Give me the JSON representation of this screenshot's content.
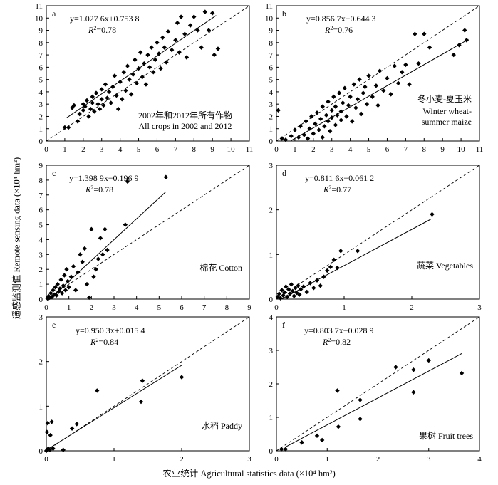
{
  "figure": {
    "xlabel": "农业统计 Agricultural statistics data (×10⁴ hm²)",
    "ylabel": "遥感监测值 Remote sensing data (×10⁴ hm²)"
  },
  "chart_data": [
    {
      "type": "scatter",
      "letter": "a",
      "label_lines": [
        "2002年和2012年所有作物",
        "All crops in 2002 and 2012"
      ],
      "equation": "y=1.027 6x+0.753 8",
      "r2": "0.78",
      "fit": {
        "slope": 1.0276,
        "intercept": 0.7538,
        "x_range": [
          1.1,
          9.2
        ]
      },
      "xlim": [
        0,
        11
      ],
      "ylim": [
        0,
        11
      ],
      "xticks": [
        0,
        1,
        2,
        3,
        4,
        5,
        6,
        7,
        8,
        9,
        10,
        11
      ],
      "yticks": [
        0,
        1,
        2,
        3,
        4,
        5,
        6,
        7,
        8,
        9,
        10,
        11
      ],
      "points": [
        [
          1.0,
          1.1
        ],
        [
          1.2,
          1.1
        ],
        [
          1.4,
          2.7
        ],
        [
          1.5,
          2.9
        ],
        [
          1.7,
          1.6
        ],
        [
          1.8,
          2.2
        ],
        [
          2.0,
          2.5
        ],
        [
          2.0,
          3.0
        ],
        [
          2.1,
          2.8
        ],
        [
          2.2,
          3.3
        ],
        [
          2.3,
          2.0
        ],
        [
          2.4,
          2.6
        ],
        [
          2.5,
          3.1
        ],
        [
          2.5,
          3.6
        ],
        [
          2.6,
          2.4
        ],
        [
          2.7,
          3.9
        ],
        [
          2.8,
          3.0
        ],
        [
          2.9,
          2.6
        ],
        [
          3.0,
          3.4
        ],
        [
          3.0,
          4.2
        ],
        [
          3.1,
          2.9
        ],
        [
          3.2,
          4.6
        ],
        [
          3.3,
          3.5
        ],
        [
          3.4,
          4.0
        ],
        [
          3.5,
          3.1
        ],
        [
          3.6,
          4.4
        ],
        [
          3.7,
          5.3
        ],
        [
          3.8,
          3.7
        ],
        [
          3.9,
          2.6
        ],
        [
          4.0,
          4.8
        ],
        [
          4.1,
          3.4
        ],
        [
          4.2,
          5.6
        ],
        [
          4.3,
          4.1
        ],
        [
          4.4,
          6.1
        ],
        [
          4.5,
          5.0
        ],
        [
          4.6,
          3.8
        ],
        [
          4.7,
          5.4
        ],
        [
          4.8,
          6.6
        ],
        [
          4.9,
          4.7
        ],
        [
          5.0,
          5.9
        ],
        [
          5.1,
          7.2
        ],
        [
          5.2,
          5.2
        ],
        [
          5.3,
          6.3
        ],
        [
          5.4,
          4.6
        ],
        [
          5.5,
          7.0
        ],
        [
          5.6,
          6.0
        ],
        [
          5.7,
          7.6
        ],
        [
          5.8,
          5.6
        ],
        [
          5.9,
          6.6
        ],
        [
          6.0,
          8.0
        ],
        [
          6.1,
          7.1
        ],
        [
          6.2,
          5.9
        ],
        [
          6.3,
          8.4
        ],
        [
          6.4,
          7.6
        ],
        [
          6.5,
          6.4
        ],
        [
          6.6,
          8.9
        ],
        [
          6.8,
          7.4
        ],
        [
          7.0,
          8.2
        ],
        [
          7.1,
          9.6
        ],
        [
          7.2,
          7.2
        ],
        [
          7.3,
          10.1
        ],
        [
          7.5,
          8.7
        ],
        [
          7.6,
          6.8
        ],
        [
          7.8,
          9.4
        ],
        [
          8.0,
          10.1
        ],
        [
          8.2,
          9.0
        ],
        [
          8.4,
          7.6
        ],
        [
          8.6,
          10.5
        ],
        [
          8.8,
          9.0
        ],
        [
          9.0,
          10.4
        ],
        [
          9.1,
          7.0
        ],
        [
          9.3,
          7.5
        ]
      ]
    },
    {
      "type": "scatter",
      "letter": "b",
      "label_lines": [
        "冬小麦-夏玉米",
        "Winter wheat-",
        "summer maize"
      ],
      "equation": "y=0.856 7x−0.644 3",
      "r2": "0.76",
      "fit": {
        "slope": 0.8567,
        "intercept": -0.6443,
        "x_range": [
          0.8,
          10.4
        ]
      },
      "xlim": [
        0,
        11
      ],
      "ylim": [
        0,
        11
      ],
      "xticks": [
        0,
        1,
        2,
        3,
        4,
        5,
        6,
        7,
        8,
        9,
        10,
        11
      ],
      "yticks": [
        0,
        1,
        2,
        3,
        4,
        5,
        6,
        7,
        8,
        9,
        10,
        11
      ],
      "points": [
        [
          0.1,
          2.5
        ],
        [
          0.3,
          0.2
        ],
        [
          0.5,
          0.1
        ],
        [
          0.8,
          0.4
        ],
        [
          1.0,
          0.9
        ],
        [
          1.2,
          0.3
        ],
        [
          1.3,
          1.2
        ],
        [
          1.5,
          0.5
        ],
        [
          1.6,
          1.6
        ],
        [
          1.7,
          0.2
        ],
        [
          1.8,
          1.0
        ],
        [
          1.9,
          2.0
        ],
        [
          2.0,
          0.6
        ],
        [
          2.1,
          1.4
        ],
        [
          2.2,
          2.3
        ],
        [
          2.3,
          0.9
        ],
        [
          2.4,
          1.8
        ],
        [
          2.5,
          2.8
        ],
        [
          2.5,
          0.3
        ],
        [
          2.6,
          1.2
        ],
        [
          2.7,
          2.1
        ],
        [
          2.8,
          1.6
        ],
        [
          2.8,
          3.2
        ],
        [
          2.9,
          0.8
        ],
        [
          3.0,
          2.5
        ],
        [
          3.0,
          1.9
        ],
        [
          3.1,
          3.6
        ],
        [
          3.2,
          1.3
        ],
        [
          3.2,
          2.8
        ],
        [
          3.3,
          2.1
        ],
        [
          3.4,
          3.9
        ],
        [
          3.5,
          1.7
        ],
        [
          3.5,
          2.4
        ],
        [
          3.6,
          3.1
        ],
        [
          3.7,
          4.3
        ],
        [
          3.8,
          2.0
        ],
        [
          3.9,
          2.9
        ],
        [
          4.0,
          3.6
        ],
        [
          4.1,
          1.6
        ],
        [
          4.2,
          4.6
        ],
        [
          4.3,
          2.7
        ],
        [
          4.4,
          3.4
        ],
        [
          4.5,
          5.0
        ],
        [
          4.6,
          2.2
        ],
        [
          4.7,
          3.9
        ],
        [
          4.8,
          4.4
        ],
        [
          4.9,
          3.0
        ],
        [
          5.0,
          5.3
        ],
        [
          5.2,
          3.6
        ],
        [
          5.4,
          4.5
        ],
        [
          5.5,
          2.9
        ],
        [
          5.6,
          5.7
        ],
        [
          5.8,
          4.1
        ],
        [
          6.0,
          5.1
        ],
        [
          6.2,
          3.8
        ],
        [
          6.4,
          6.1
        ],
        [
          6.6,
          4.7
        ],
        [
          6.8,
          5.6
        ],
        [
          7.0,
          6.2
        ],
        [
          7.2,
          4.6
        ],
        [
          7.5,
          8.7
        ],
        [
          7.7,
          6.3
        ],
        [
          8.0,
          8.7
        ],
        [
          8.3,
          7.6
        ],
        [
          9.6,
          7.0
        ],
        [
          9.9,
          7.8
        ],
        [
          10.2,
          9.0
        ],
        [
          10.3,
          8.2
        ]
      ]
    },
    {
      "type": "scatter",
      "letter": "c",
      "label_lines": [
        "棉花 Cotton"
      ],
      "equation": "y=1.398 9x−0.196 9",
      "r2": "0.78",
      "fit": {
        "slope": 1.3989,
        "intercept": -0.1969,
        "x_range": [
          0.05,
          5.3
        ]
      },
      "xlim": [
        0,
        9
      ],
      "ylim": [
        0,
        9
      ],
      "xticks": [
        0,
        1,
        2,
        3,
        4,
        5,
        6,
        7,
        8,
        9
      ],
      "yticks": [
        0,
        1,
        2,
        3,
        4,
        5,
        6,
        7,
        8,
        9
      ],
      "points": [
        [
          0.05,
          0.05
        ],
        [
          0.1,
          0.2
        ],
        [
          0.15,
          0.1
        ],
        [
          0.2,
          0.4
        ],
        [
          0.25,
          0.15
        ],
        [
          0.3,
          0.6
        ],
        [
          0.35,
          0.3
        ],
        [
          0.4,
          0.8
        ],
        [
          0.45,
          0.25
        ],
        [
          0.5,
          1.0
        ],
        [
          0.55,
          0.5
        ],
        [
          0.6,
          0.7
        ],
        [
          0.65,
          1.3
        ],
        [
          0.7,
          0.4
        ],
        [
          0.75,
          0.9
        ],
        [
          0.8,
          1.6
        ],
        [
          0.85,
          0.6
        ],
        [
          0.9,
          2.0
        ],
        [
          0.95,
          1.2
        ],
        [
          1.0,
          0.8
        ],
        [
          1.1,
          1.5
        ],
        [
          1.2,
          2.2
        ],
        [
          1.3,
          0.6
        ],
        [
          1.4,
          1.8
        ],
        [
          1.5,
          3.0
        ],
        [
          1.6,
          2.5
        ],
        [
          1.7,
          3.4
        ],
        [
          1.8,
          1.0
        ],
        [
          1.9,
          0.1
        ],
        [
          2.0,
          4.7
        ],
        [
          2.1,
          1.5
        ],
        [
          2.2,
          2.0
        ],
        [
          2.3,
          2.7
        ],
        [
          2.4,
          4.1
        ],
        [
          2.5,
          3.0
        ],
        [
          2.6,
          4.7
        ],
        [
          2.7,
          3.3
        ],
        [
          3.5,
          5.0
        ],
        [
          3.6,
          7.9
        ],
        [
          5.3,
          8.2
        ]
      ]
    },
    {
      "type": "scatter",
      "letter": "d",
      "label_lines": [
        "蔬菜 Vegetables"
      ],
      "equation": "y=0.811 6x−0.061 2",
      "r2": "0.77",
      "fit": {
        "slope": 0.8116,
        "intercept": -0.0612,
        "x_range": [
          0.08,
          2.28
        ]
      },
      "xlim": [
        0,
        3
      ],
      "ylim": [
        0,
        3
      ],
      "xticks": [
        0,
        1,
        2,
        3
      ],
      "yticks": [
        0,
        1,
        2,
        3
      ],
      "points": [
        [
          0.02,
          0.05
        ],
        [
          0.04,
          0.12
        ],
        [
          0.06,
          0.02
        ],
        [
          0.08,
          0.2
        ],
        [
          0.1,
          0.08
        ],
        [
          0.12,
          0.15
        ],
        [
          0.14,
          0.28
        ],
        [
          0.16,
          0.05
        ],
        [
          0.18,
          0.22
        ],
        [
          0.2,
          0.12
        ],
        [
          0.22,
          0.33
        ],
        [
          0.24,
          0.18
        ],
        [
          0.26,
          0.07
        ],
        [
          0.28,
          0.25
        ],
        [
          0.3,
          0.14
        ],
        [
          0.32,
          0.3
        ],
        [
          0.34,
          0.1
        ],
        [
          0.36,
          0.22
        ],
        [
          0.4,
          0.28
        ],
        [
          0.45,
          0.16
        ],
        [
          0.5,
          0.36
        ],
        [
          0.55,
          0.25
        ],
        [
          0.6,
          0.42
        ],
        [
          0.65,
          0.3
        ],
        [
          0.7,
          0.5
        ],
        [
          0.75,
          0.64
        ],
        [
          0.8,
          0.72
        ],
        [
          0.85,
          0.88
        ],
        [
          0.9,
          0.7
        ],
        [
          0.95,
          1.08
        ],
        [
          1.2,
          1.08
        ],
        [
          2.3,
          1.9
        ]
      ]
    },
    {
      "type": "scatter",
      "letter": "e",
      "label_lines": [
        "水稻 Paddy"
      ],
      "equation": "y=0.950 3x+0.015 4",
      "r2": "0.84",
      "fit": {
        "slope": 0.9503,
        "intercept": 0.0154,
        "x_range": [
          0.0,
          2.0
        ]
      },
      "xlim": [
        0,
        3
      ],
      "ylim": [
        0,
        3
      ],
      "xticks": [
        0,
        1,
        2,
        3
      ],
      "yticks": [
        0,
        1,
        2,
        3
      ],
      "points": [
        [
          0.0,
          0.0
        ],
        [
          0.01,
          0.42
        ],
        [
          0.02,
          0.62
        ],
        [
          0.03,
          0.05
        ],
        [
          0.05,
          0.02
        ],
        [
          0.06,
          0.35
        ],
        [
          0.08,
          0.65
        ],
        [
          0.1,
          0.05
        ],
        [
          0.25,
          0.02
        ],
        [
          0.38,
          0.5
        ],
        [
          0.45,
          0.6
        ],
        [
          0.75,
          1.35
        ],
        [
          1.4,
          1.1
        ],
        [
          1.42,
          1.57
        ],
        [
          2.0,
          1.65
        ]
      ]
    },
    {
      "type": "scatter",
      "letter": "f",
      "label_lines": [
        "果树 Fruit trees"
      ],
      "equation": "y=0.803 7x−0.028 9",
      "r2": "0.82",
      "fit": {
        "slope": 0.8037,
        "intercept": -0.0289,
        "x_range": [
          0.18,
          3.65
        ]
      },
      "xlim": [
        0,
        4
      ],
      "ylim": [
        0,
        4
      ],
      "xticks": [
        0,
        1,
        2,
        3,
        4
      ],
      "yticks": [
        0,
        1,
        2,
        3,
        4
      ],
      "points": [
        [
          0.1,
          0.05
        ],
        [
          0.18,
          0.05
        ],
        [
          0.5,
          0.25
        ],
        [
          0.8,
          0.45
        ],
        [
          0.9,
          0.32
        ],
        [
          1.2,
          1.8
        ],
        [
          1.22,
          0.72
        ],
        [
          1.65,
          1.52
        ],
        [
          1.65,
          0.95
        ],
        [
          2.35,
          2.5
        ],
        [
          2.7,
          2.42
        ],
        [
          2.7,
          1.75
        ],
        [
          3.0,
          2.7
        ],
        [
          3.65,
          2.32
        ]
      ]
    }
  ]
}
